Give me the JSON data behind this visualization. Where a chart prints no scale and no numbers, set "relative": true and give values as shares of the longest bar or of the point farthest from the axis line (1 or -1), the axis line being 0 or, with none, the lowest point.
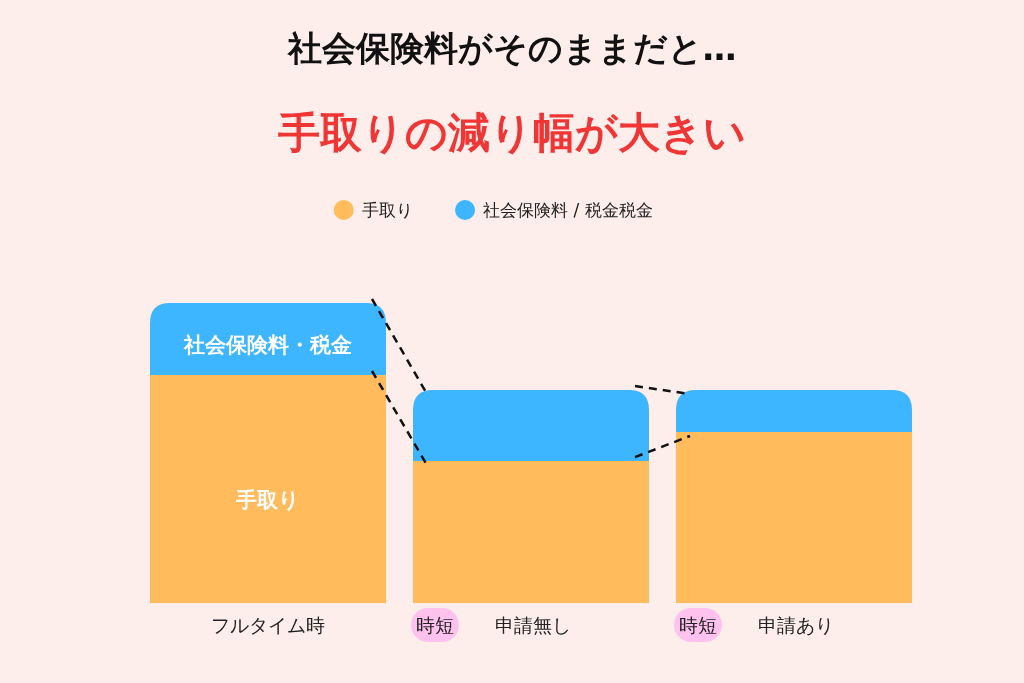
{
  "chart_data": {
    "type": "bar",
    "stacked": true,
    "relative": true,
    "title": "社会保険料がそのままだと…",
    "subtitle": "手取りの減り幅が大きい",
    "categories": [
      "フルタイム時",
      "時短 申請無し",
      "時短 申請あり"
    ],
    "series": [
      {
        "name": "手取り",
        "color": "#ffbb5c",
        "values": [
          0.76,
          0.473,
          0.57
        ]
      },
      {
        "name": "社会保険料 / 税金税金",
        "color": "#3db5ff",
        "values": [
          0.24,
          0.237,
          0.14
        ]
      }
    ],
    "annotations": [
      "社会保険料・税金",
      "手取り"
    ],
    "legend": "top",
    "grid": false
  }
}
